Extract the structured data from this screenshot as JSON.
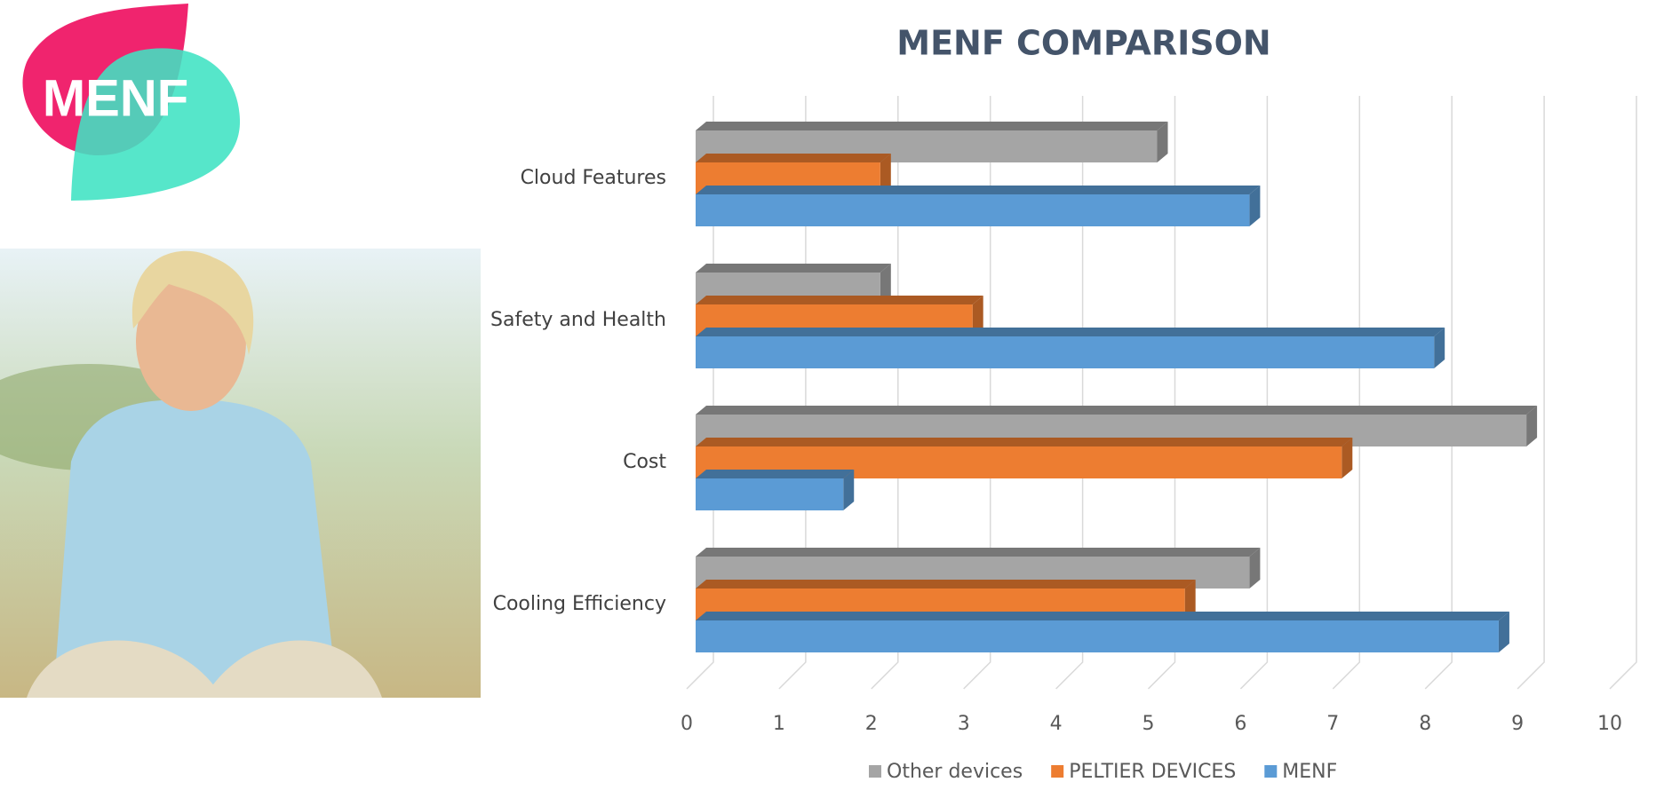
{
  "logo": "MENF",
  "chart_data": {
    "type": "bar",
    "orientation": "horizontal",
    "title": "MENF COMPARISON",
    "categories": [
      "Cooling Efficiency",
      "Cost",
      "Safety and Health",
      "Cloud Features"
    ],
    "series": [
      {
        "name": "Other devices",
        "color": "#a5a5a5",
        "values": [
          6,
          9,
          2,
          5
        ]
      },
      {
        "name": "PELTIER DEVICES",
        "color": "#ed7d31",
        "values": [
          5.3,
          7,
          3,
          2
        ]
      },
      {
        "name": "MENF",
        "color": "#5b9bd5",
        "values": [
          8.7,
          1.6,
          8,
          6
        ]
      }
    ],
    "xlim": [
      0,
      10
    ],
    "xticks": [
      0,
      1,
      2,
      3,
      4,
      5,
      6,
      7,
      8,
      9,
      10
    ],
    "grid": true,
    "legend": "bottom"
  }
}
